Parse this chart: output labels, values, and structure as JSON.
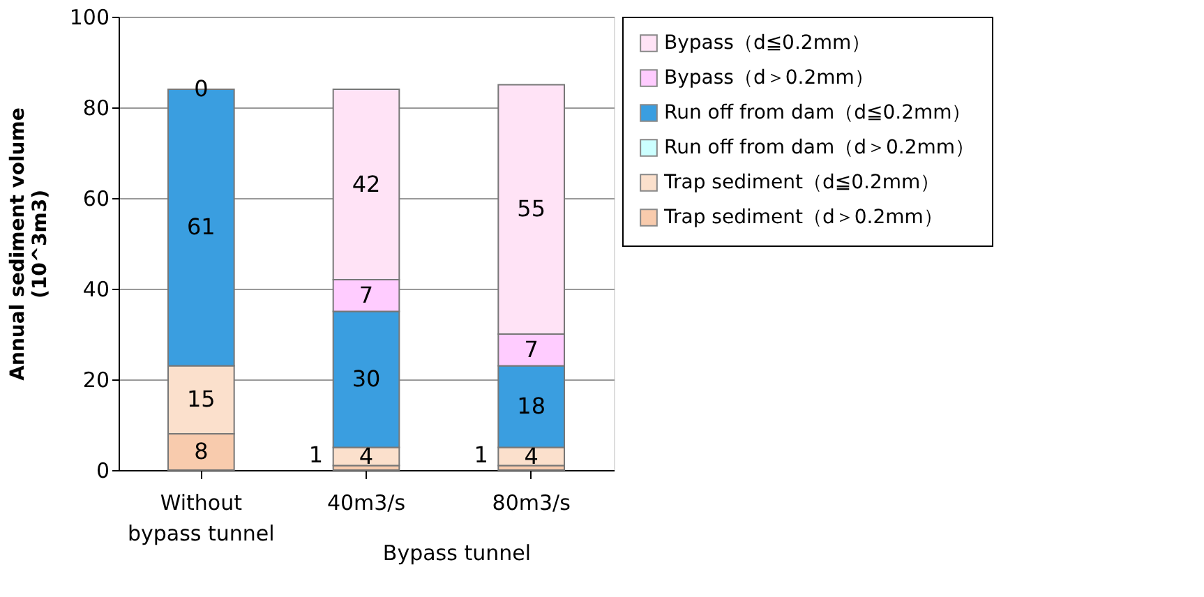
{
  "chart_data": {
    "type": "bar",
    "stacked": true,
    "ylabel": "Annual sediment volume\n(10^3m3)",
    "xlabel": "Bypass tunnel",
    "categories": [
      "Without bypass tunnel",
      "40m3/s",
      "80m3/s"
    ],
    "ylim": [
      0,
      100
    ],
    "yticks": [
      0,
      20,
      40,
      60,
      80,
      100
    ],
    "grid": "y",
    "legend": "right",
    "series": [
      {
        "name": "Trap sediment（d＞0.2mm）",
        "color": "#f8cbad",
        "values": [
          8,
          1,
          1
        ],
        "value_labels": [
          "8",
          "1",
          "1"
        ]
      },
      {
        "name": "Trap sediment（d≦0.2mm）",
        "color": "#fbe0cc",
        "values": [
          15,
          4,
          4
        ],
        "value_labels": [
          "15",
          "4",
          "4"
        ]
      },
      {
        "name": "Run off from dam（d＞0.2mm）",
        "color": "#ccffff",
        "values": [
          null,
          null,
          null
        ]
      },
      {
        "name": "Run off from dam（d≦0.2mm）",
        "color": "#3a9ee0",
        "values": [
          61,
          30,
          18
        ],
        "value_labels": [
          "61",
          "30",
          "18"
        ]
      },
      {
        "name": "Bypass（d＞0.2mm）",
        "color": "#ffccff",
        "values": [
          null,
          7,
          7
        ],
        "value_labels": [
          null,
          "7",
          "7"
        ]
      },
      {
        "name": "Bypass（d≦0.2mm）",
        "color": "#ffe3f6",
        "values": [
          0,
          42,
          55
        ],
        "value_labels": [
          "0",
          "42",
          "55"
        ]
      }
    ]
  }
}
